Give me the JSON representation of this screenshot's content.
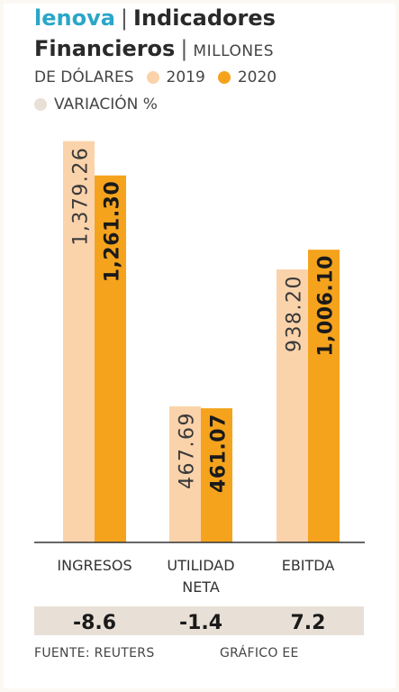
{
  "header": {
    "brand": "lenova",
    "title_part1": "Indicadores",
    "title_part2": "Financieros",
    "units_part1": "MILLONES",
    "units_part2": "DE DÓLARES"
  },
  "colors": {
    "brand": "#2aa6c8",
    "series_2019": "#fbd3ab",
    "series_2020": "#f5a31d",
    "variation_band": "#efe6dc",
    "axis": "#333333"
  },
  "footer": {
    "source": "FUENTE: REUTERS",
    "credit": "GRÁFICO EE"
  },
  "chart_data": {
    "type": "bar",
    "categories": [
      "INGRESOS",
      "UTILIDAD NETA",
      "EBITDA"
    ],
    "category_lines": [
      [
        "INGRESOS"
      ],
      [
        "UTILIDAD",
        "NETA"
      ],
      [
        "EBITDA"
      ]
    ],
    "series": [
      {
        "name": "2019",
        "values": [
          1379.26,
          467.69,
          938.2
        ],
        "labels": [
          "1,379.26",
          "467.69",
          "938.20"
        ],
        "color": "#fbd3ab"
      },
      {
        "name": "2020",
        "values": [
          1261.3,
          461.07,
          1006.1
        ],
        "labels": [
          "1,261.30",
          "461.07",
          "1,006.10"
        ],
        "color": "#f5a31d"
      }
    ],
    "variation": {
      "name": "VARIACIÓN %",
      "values": [
        -8.6,
        -1.4,
        7.2
      ],
      "labels": [
        "-8.6",
        "-1.4",
        "7.2"
      ],
      "color": "#e8e0d6"
    },
    "ylim": [
      0,
      1400
    ]
  }
}
